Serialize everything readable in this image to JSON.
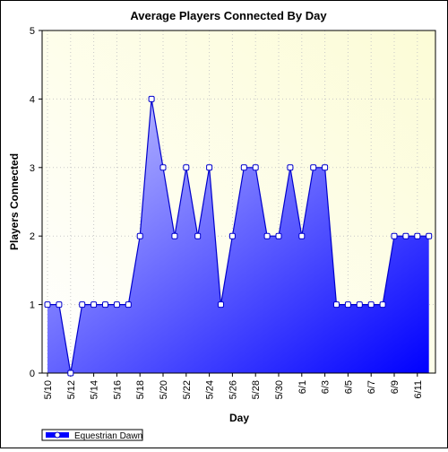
{
  "chart_data": {
    "type": "area",
    "title": "Average Players Connected By Day",
    "xlabel": "Day",
    "ylabel": "Players Connected",
    "ylim": [
      0,
      5
    ],
    "yticks": [
      "0",
      "1",
      "2",
      "3",
      "4",
      "5"
    ],
    "categories": [
      "5/10",
      "5/11",
      "5/12",
      "5/13",
      "5/14",
      "5/15",
      "5/16",
      "5/17",
      "5/18",
      "5/19",
      "5/20",
      "5/21",
      "5/22",
      "5/23",
      "5/24",
      "5/25",
      "5/26",
      "5/27",
      "5/28",
      "5/29",
      "5/30",
      "5/31",
      "6/1",
      "6/2",
      "6/3",
      "6/4",
      "6/5",
      "6/6",
      "6/7",
      "6/8",
      "6/9",
      "6/10",
      "6/11",
      "6/12"
    ],
    "xtick_labels": [
      "5/10",
      "5/12",
      "5/14",
      "5/16",
      "5/18",
      "5/20",
      "5/22",
      "5/24",
      "5/26",
      "5/28",
      "5/30",
      "6/1",
      "6/3",
      "6/5",
      "6/7",
      "6/9",
      "6/11"
    ],
    "series": [
      {
        "name": "Equestrian Dawn",
        "values": [
          1,
          1,
          0,
          1,
          1,
          1,
          1,
          1,
          2,
          4,
          3,
          2,
          3,
          2,
          3,
          1,
          2,
          3,
          3,
          2,
          2,
          3,
          2,
          3,
          3,
          1,
          1,
          1,
          1,
          1,
          2,
          2,
          2,
          2
        ]
      }
    ],
    "grid": true,
    "legend_position": "bottom-left",
    "colors": {
      "plot_bg_light": "#ffffff",
      "plot_bg_dark": "#fcfcd6",
      "area_light": "#c8c8ff",
      "area_dark": "#0000ff",
      "line": "#0000cc",
      "marker_fill": "#ffffff",
      "grid": "#c8c8c8"
    }
  }
}
